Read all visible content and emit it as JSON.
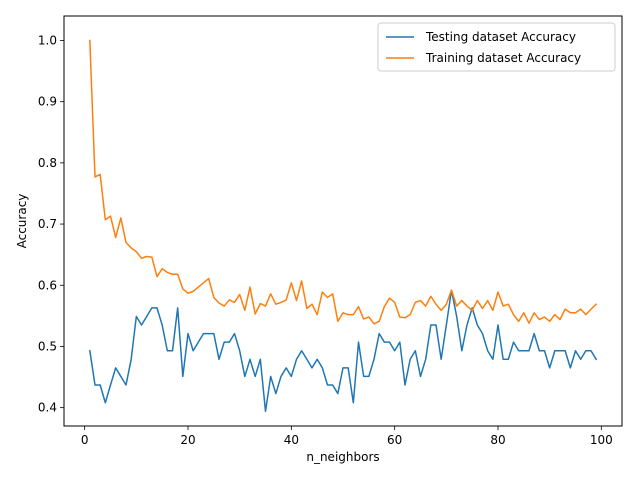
{
  "chart_data": {
    "type": "line",
    "title": "",
    "xlabel": "n_neighbors",
    "ylabel": "Accuracy",
    "xlim": [
      -4,
      104
    ],
    "ylim": [
      0.37,
      1.04
    ],
    "xticks": [
      0,
      20,
      40,
      60,
      80,
      100
    ],
    "yticks": [
      0.4,
      0.5,
      0.6,
      0.7,
      0.8,
      0.9,
      1.0
    ],
    "ytick_labels": [
      "0.4",
      "0.5",
      "0.6",
      "0.7",
      "0.8",
      "0.9",
      "1.0"
    ],
    "grid": false,
    "legend_position": "top-right",
    "x": [
      1,
      2,
      3,
      4,
      5,
      6,
      7,
      8,
      9,
      10,
      11,
      12,
      13,
      14,
      15,
      16,
      17,
      18,
      19,
      20,
      21,
      22,
      23,
      24,
      25,
      26,
      27,
      28,
      29,
      30,
      31,
      32,
      33,
      34,
      35,
      36,
      37,
      38,
      39,
      40,
      41,
      42,
      43,
      44,
      45,
      46,
      47,
      48,
      49,
      50,
      51,
      52,
      53,
      54,
      55,
      56,
      57,
      58,
      59,
      60,
      61,
      62,
      63,
      64,
      65,
      66,
      67,
      68,
      69,
      70,
      71,
      72,
      73,
      74,
      75,
      76,
      77,
      78,
      79,
      80,
      81,
      82,
      83,
      84,
      85,
      86,
      87,
      88,
      89,
      90,
      91,
      92,
      93,
      94,
      95,
      96,
      97,
      98,
      99
    ],
    "series": [
      {
        "name": "Testing dataset Accuracy",
        "color": "#1f77b4",
        "values": [
          0.493,
          0.437,
          0.437,
          0.408,
          0.437,
          0.465,
          0.451,
          0.437,
          0.479,
          0.549,
          0.535,
          0.549,
          0.563,
          0.563,
          0.535,
          0.493,
          0.493,
          0.563,
          0.451,
          0.521,
          0.493,
          0.507,
          0.521,
          0.521,
          0.521,
          0.479,
          0.507,
          0.507,
          0.521,
          0.493,
          0.451,
          0.479,
          0.451,
          0.479,
          0.394,
          0.451,
          0.423,
          0.451,
          0.465,
          0.451,
          0.479,
          0.493,
          0.479,
          0.465,
          0.479,
          0.465,
          0.437,
          0.437,
          0.423,
          0.465,
          0.465,
          0.408,
          0.507,
          0.451,
          0.451,
          0.479,
          0.521,
          0.507,
          0.507,
          0.493,
          0.507,
          0.437,
          0.479,
          0.493,
          0.451,
          0.479,
          0.535,
          0.535,
          0.479,
          0.535,
          0.592,
          0.549,
          0.493,
          0.535,
          0.563,
          0.535,
          0.521,
          0.493,
          0.479,
          0.535,
          0.479,
          0.479,
          0.507,
          0.493,
          0.493,
          0.493,
          0.521,
          0.493,
          0.493,
          0.465,
          0.493,
          0.493,
          0.493,
          0.465,
          0.493,
          0.479,
          0.493,
          0.493,
          0.479
        ]
      },
      {
        "name": "Training dataset Accuracy",
        "color": "#ff7f0e",
        "values": [
          1.0,
          0.777,
          0.781,
          0.707,
          0.713,
          0.678,
          0.71,
          0.67,
          0.661,
          0.655,
          0.644,
          0.647,
          0.646,
          0.614,
          0.627,
          0.621,
          0.618,
          0.618,
          0.594,
          0.587,
          0.59,
          0.597,
          0.604,
          0.611,
          0.58,
          0.571,
          0.566,
          0.576,
          0.572,
          0.585,
          0.559,
          0.597,
          0.553,
          0.57,
          0.566,
          0.586,
          0.569,
          0.572,
          0.576,
          0.604,
          0.575,
          0.607,
          0.562,
          0.569,
          0.552,
          0.589,
          0.58,
          0.586,
          0.541,
          0.555,
          0.552,
          0.552,
          0.565,
          0.545,
          0.548,
          0.537,
          0.541,
          0.565,
          0.579,
          0.572,
          0.548,
          0.547,
          0.552,
          0.572,
          0.575,
          0.566,
          0.582,
          0.569,
          0.559,
          0.569,
          0.592,
          0.566,
          0.575,
          0.566,
          0.559,
          0.575,
          0.562,
          0.575,
          0.559,
          0.589,
          0.566,
          0.569,
          0.552,
          0.541,
          0.555,
          0.538,
          0.555,
          0.544,
          0.548,
          0.541,
          0.552,
          0.544,
          0.561,
          0.555,
          0.555,
          0.561,
          0.552,
          0.561,
          0.569
        ]
      }
    ]
  }
}
